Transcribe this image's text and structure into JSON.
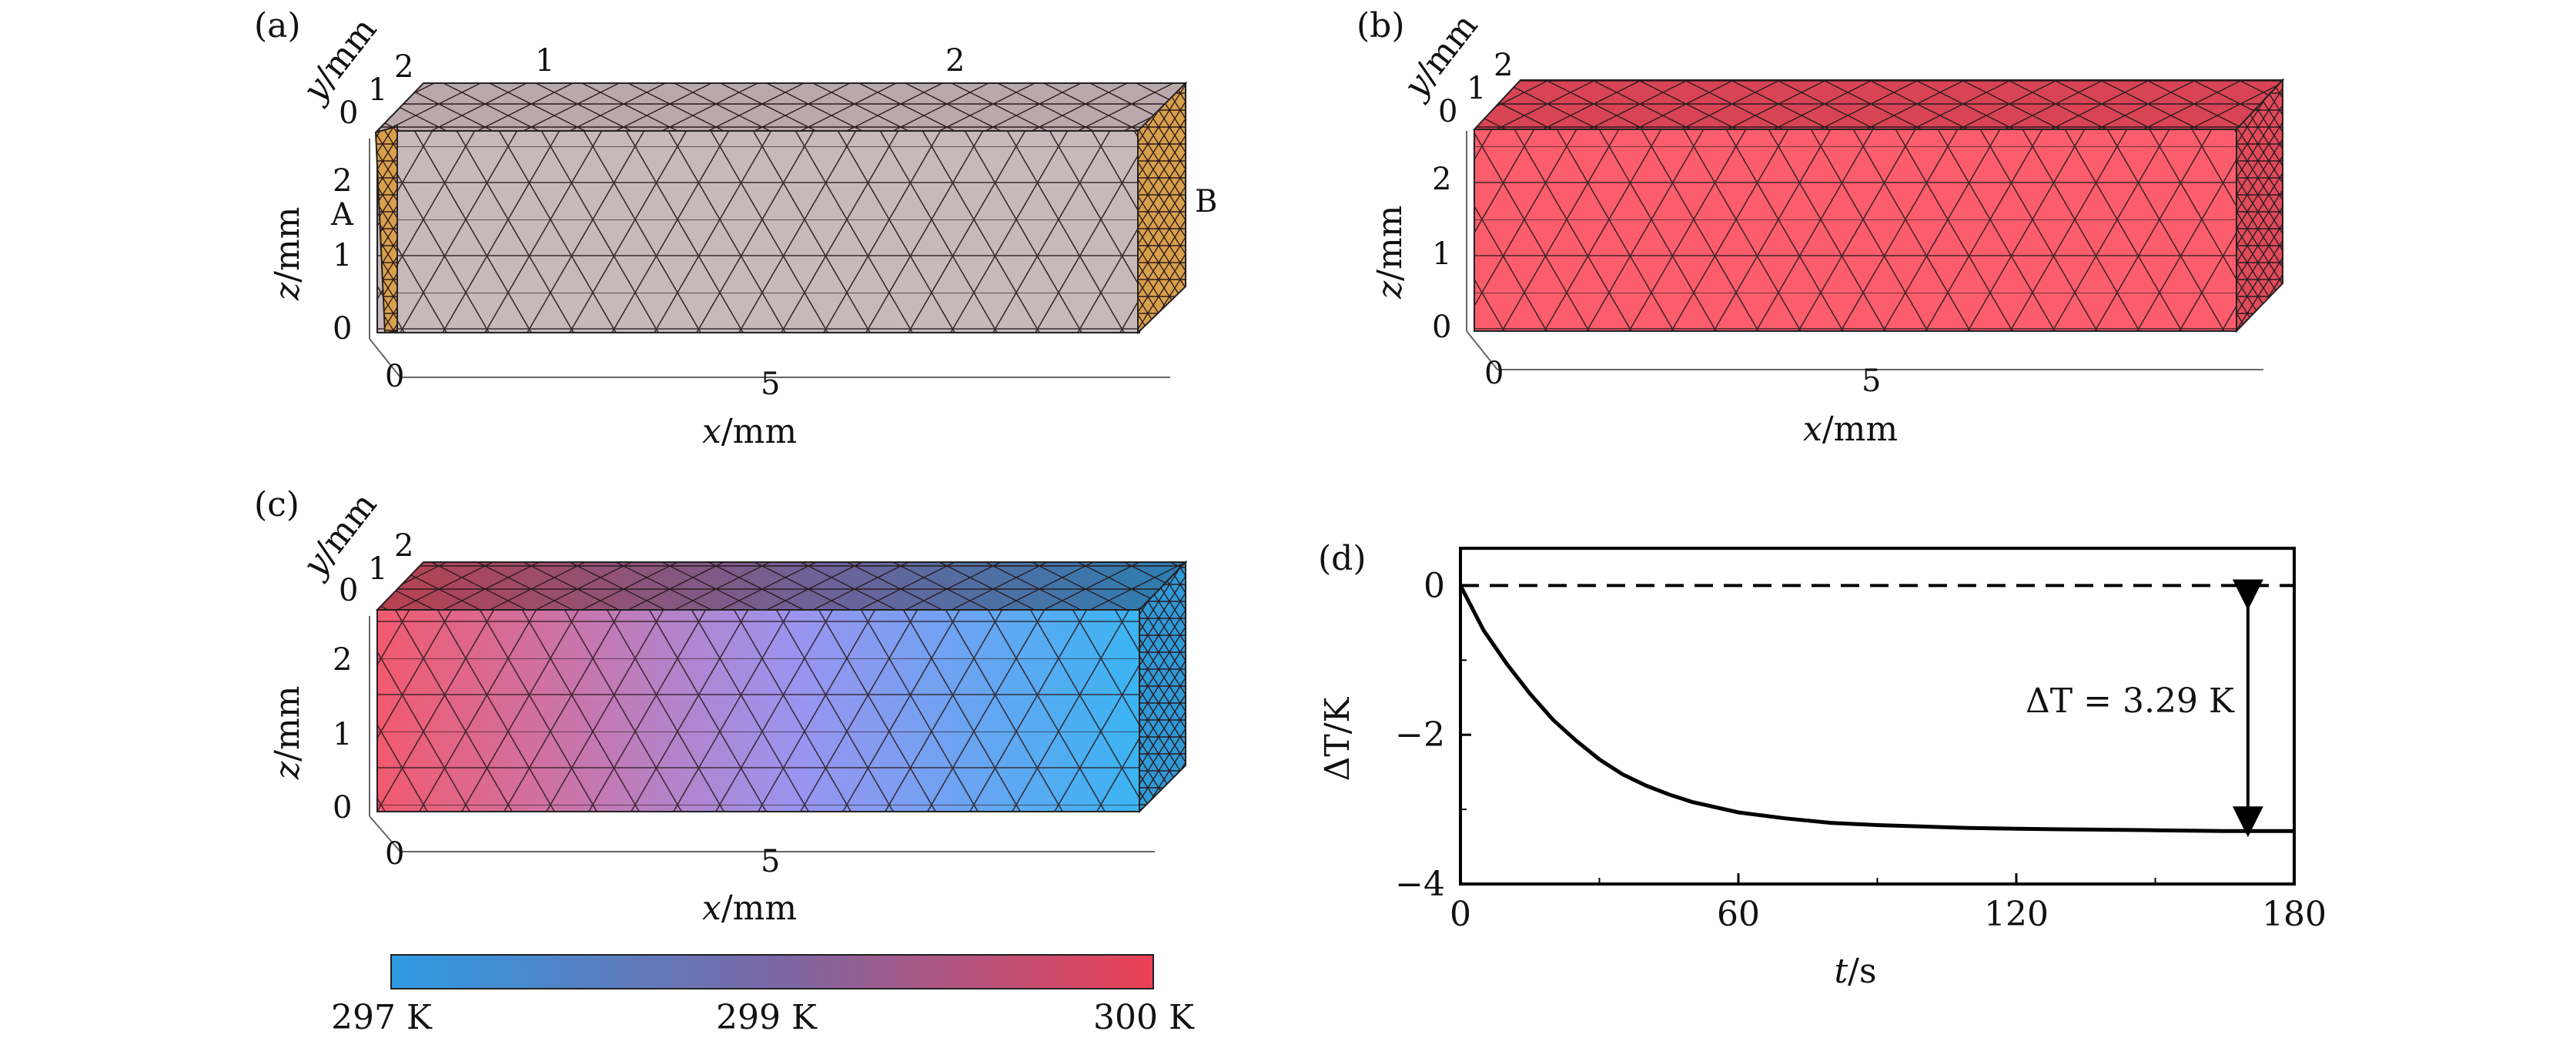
{
  "panels": {
    "a": {
      "label": "(a)",
      "y_axis_label_var": "y",
      "y_axis_label_unit": "/mm",
      "z_axis_label_var": "z",
      "z_axis_label_unit": "/mm",
      "x_axis_label_var": "x",
      "x_axis_label_unit": "/mm",
      "x_ticks": [
        "0",
        "5"
      ],
      "z_ticks": [
        "0",
        "1",
        "2"
      ],
      "y_ticks": [
        "0",
        "1",
        "2"
      ],
      "region_labels": [
        "1",
        "2"
      ],
      "contact_labels": [
        "A",
        "B"
      ],
      "colors": {
        "body": "#c7b9bb",
        "contact": "#d9a04a"
      }
    },
    "b": {
      "label": "(b)",
      "y_axis_label_var": "y",
      "y_axis_label_unit": "/mm",
      "z_axis_label_var": "z",
      "z_axis_label_unit": "/mm",
      "x_axis_label_var": "x",
      "x_axis_label_unit": "/mm",
      "x_ticks": [
        "0",
        "5"
      ],
      "z_ticks": [
        "0",
        "1",
        "2"
      ],
      "y_ticks": [
        "0",
        "1",
        "2"
      ],
      "colors": {
        "body": "#fb5d6c"
      }
    },
    "c": {
      "label": "(c)",
      "y_axis_label_var": "y",
      "y_axis_label_unit": "/mm",
      "z_axis_label_var": "z",
      "z_axis_label_unit": "/mm",
      "x_axis_label_var": "x",
      "x_axis_label_unit": "/mm",
      "x_ticks": [
        "0",
        "5"
      ],
      "z_ticks": [
        "0",
        "1",
        "2"
      ],
      "y_ticks": [
        "0",
        "1",
        "2"
      ],
      "colors": {
        "hot": "#f25a6e",
        "mid": "#9a94f0",
        "cold": "#3ab4f2"
      }
    },
    "colorbar": {
      "min_label": "297 K",
      "mid_label": "299 K",
      "max_label": "300 K",
      "colors": {
        "low": "#2e9be3",
        "mid": "#7a68a6",
        "high": "#ec4056"
      }
    }
  },
  "chart_data": {
    "type": "line",
    "label": "(d)",
    "xlabel_var": "t",
    "xlabel_unit": "/s",
    "ylabel": "ΔT/K",
    "xlim": [
      0,
      180
    ],
    "ylim": [
      -4,
      0.5
    ],
    "x_ticks": [
      0,
      60,
      120,
      180
    ],
    "y_ticks": [
      0,
      -2,
      -4
    ],
    "series": [
      {
        "name": "ΔT(t)",
        "style": "solid",
        "x": [
          0,
          5,
          10,
          15,
          20,
          25,
          30,
          35,
          40,
          45,
          50,
          60,
          70,
          80,
          90,
          100,
          110,
          120,
          135,
          150,
          165,
          180
        ],
        "y": [
          0,
          -0.6,
          -1.05,
          -1.45,
          -1.8,
          -2.08,
          -2.33,
          -2.53,
          -2.68,
          -2.8,
          -2.9,
          -3.04,
          -3.12,
          -3.18,
          -3.21,
          -3.23,
          -3.25,
          -3.26,
          -3.27,
          -3.28,
          -3.29,
          -3.29
        ]
      },
      {
        "name": "reference",
        "style": "dashed",
        "x": [
          0,
          180
        ],
        "y": [
          0,
          0
        ]
      }
    ],
    "annotation": {
      "text": "ΔT = 3.29 K",
      "arrow_x": 170,
      "arrow_from": 0,
      "arrow_to": -3.29
    }
  }
}
